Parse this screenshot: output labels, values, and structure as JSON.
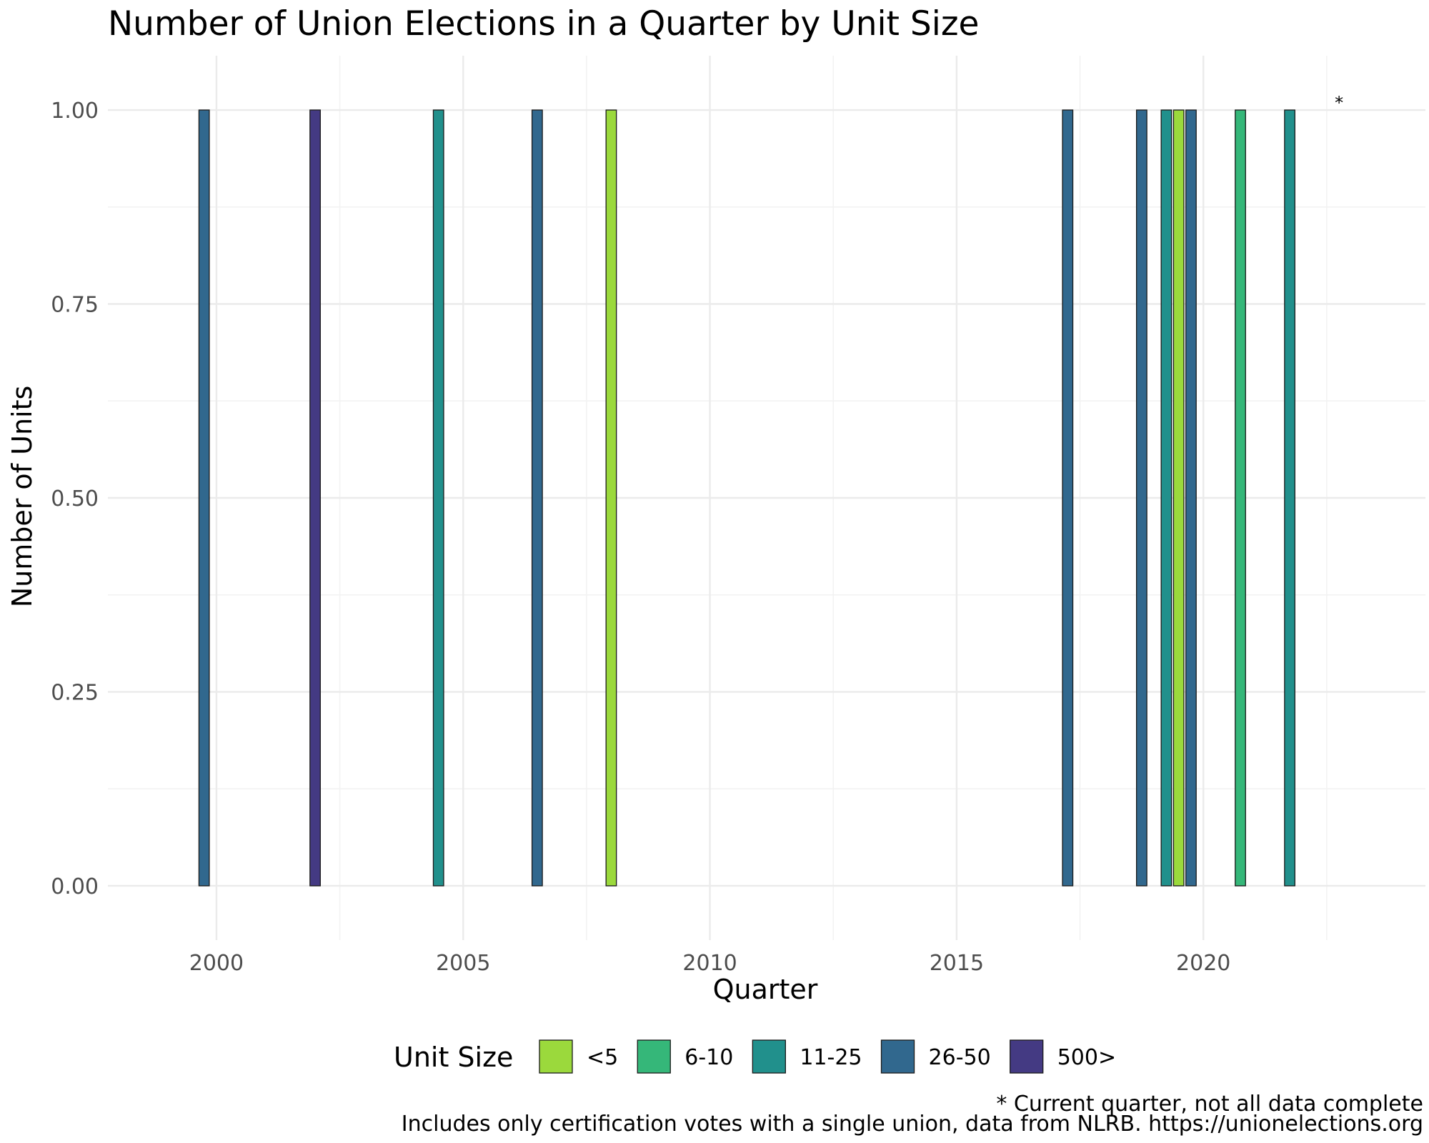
{
  "chart_data": {
    "type": "bar",
    "title": "Number of Union Elections in a Quarter by Unit Size",
    "xlabel": "Quarter",
    "ylabel": "Number of Units",
    "xlim": [
      1997.8,
      2024.5
    ],
    "ylim": [
      -0.07,
      1.07
    ],
    "x_ticks": [
      2000,
      2005,
      2010,
      2015,
      2020
    ],
    "y_ticks": [
      0,
      0.25,
      0.5,
      0.75,
      1
    ],
    "y_tick_labels": [
      "0.00",
      "0.25",
      "0.50",
      "0.75",
      "1.00"
    ],
    "grid": true,
    "legend_title": "Unit Size",
    "legend_position": "bottom",
    "series": [
      {
        "name": "<5",
        "color": "#9bd93c",
        "x": [
          2008.0,
          2019.5
        ],
        "values": [
          1,
          1
        ]
      },
      {
        "name": "6-10",
        "color": "#35b779",
        "x": [
          2020.75
        ],
        "values": [
          1
        ]
      },
      {
        "name": "11-25",
        "color": "#21908c",
        "x": [
          2004.5,
          2019.25,
          2021.75
        ],
        "values": [
          1,
          1,
          1
        ]
      },
      {
        "name": "26-50",
        "color": "#31688e",
        "x": [
          1999.75,
          2006.5,
          2017.25,
          2018.75,
          2019.75
        ],
        "values": [
          1,
          1,
          1,
          1,
          1
        ]
      },
      {
        "name": "500>",
        "color": "#443a83",
        "x": [
          2002.0
        ],
        "values": [
          1
        ]
      }
    ],
    "annotation": {
      "text": "*",
      "x": 2022.75,
      "y": 1
    }
  },
  "caption": {
    "line1": "* Current quarter, not all data complete",
    "line2": "Includes only certification votes with a single union, data from NLRB. https://unionelections.org"
  }
}
